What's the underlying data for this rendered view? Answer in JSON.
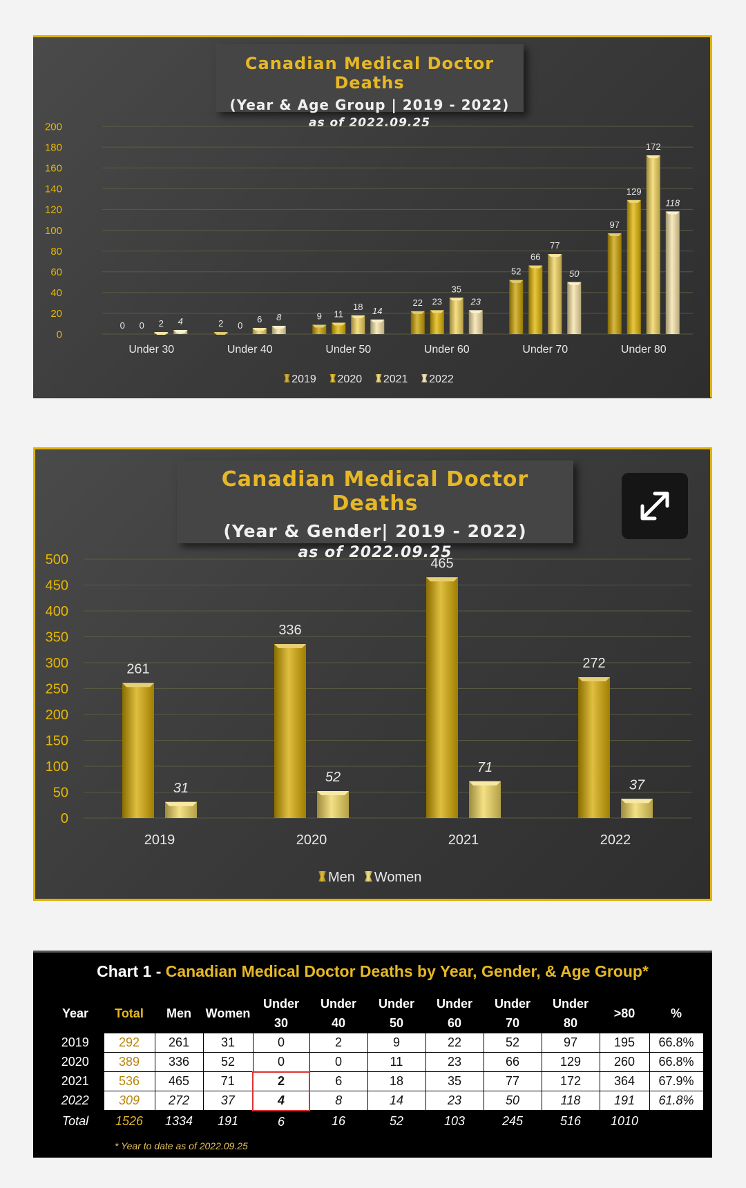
{
  "chart_data": [
    {
      "type": "bar",
      "title": "Canadian Medical Doctor Deaths",
      "subtitle": "(Year & Age Group | 2019 - 2022)",
      "date_note": "as of 2022.09.25",
      "categories": [
        "Under 30",
        "Under 40",
        "Under 50",
        "Under 60",
        "Under 70",
        "Under 80"
      ],
      "series": [
        {
          "name": "2019",
          "values": [
            0,
            2,
            9,
            22,
            52,
            97
          ],
          "value_labels": [
            "0",
            "2",
            "9",
            "22",
            "52",
            "97"
          ],
          "color": "#c9a000"
        },
        {
          "name": "2020",
          "values": [
            0,
            0,
            11,
            23,
            66,
            129
          ],
          "value_labels": [
            "0",
            "0",
            "11",
            "23",
            "66",
            "129"
          ],
          "color": "#e0b400"
        },
        {
          "name": "2021",
          "values": [
            2,
            6,
            18,
            35,
            77,
            172
          ],
          "value_labels": [
            "2",
            "6",
            "18",
            "35",
            "77",
            "172"
          ],
          "color": "#f2d35a"
        },
        {
          "name": "2022",
          "values": [
            4,
            8,
            14,
            23,
            50,
            118
          ],
          "value_labels": [
            "4",
            "8",
            "14",
            "23",
            "50",
            "118"
          ],
          "color": "#f5e3a6"
        }
      ],
      "yticks": [
        "0",
        "20",
        "40",
        "60",
        "80",
        "100",
        "120",
        "140",
        "160",
        "180",
        "200"
      ],
      "ylim": [
        0,
        200
      ],
      "grid": true,
      "legend": "bottom"
    },
    {
      "type": "bar",
      "title": "Canadian Medical Doctor Deaths",
      "subtitle": "(Year & Gender| 2019 - 2022)",
      "date_note": "as of 2022.09.25",
      "categories": [
        "2019",
        "2020",
        "2021",
        "2022"
      ],
      "series": [
        {
          "name": "Men",
          "values": [
            261,
            336,
            465,
            272
          ],
          "value_labels": [
            "261",
            "336",
            "465",
            "272"
          ],
          "color": "#d4a800"
        },
        {
          "name": "Women",
          "values": [
            31,
            52,
            71,
            37
          ],
          "value_labels": [
            "31",
            "52",
            "71",
            "37"
          ],
          "color": "#f0d55c"
        }
      ],
      "yticks": [
        "0",
        "50",
        "100",
        "150",
        "200",
        "250",
        "300",
        "350",
        "400",
        "450",
        "500"
      ],
      "ylim": [
        0,
        500
      ],
      "grid": true,
      "legend": "bottom"
    },
    {
      "type": "table",
      "title_prefix": "Chart 1 - ",
      "title": "Canadian Medical Doctor Deaths by Year, Gender, & Age Group*",
      "headers": [
        {
          "l1": "",
          "l2": "Year"
        },
        {
          "l1": "",
          "l2": "Total"
        },
        {
          "l1": "",
          "l2": "Men"
        },
        {
          "l1": "",
          "l2": "Women"
        },
        {
          "l1": "Under",
          "l2": "30"
        },
        {
          "l1": "Under",
          "l2": "40"
        },
        {
          "l1": "Under",
          "l2": "50"
        },
        {
          "l1": "Under",
          "l2": "60"
        },
        {
          "l1": "Under",
          "l2": "70"
        },
        {
          "l1": "Under",
          "l2": "80"
        },
        {
          "l1": "",
          "l2": ">80"
        },
        {
          "l1": "",
          "l2": "%"
        }
      ],
      "rows": [
        [
          "2019",
          "292",
          "261",
          "31",
          "0",
          "2",
          "9",
          "22",
          "52",
          "97",
          "195",
          "66.8%"
        ],
        [
          "2020",
          "389",
          "336",
          "52",
          "0",
          "0",
          "11",
          "23",
          "66",
          "129",
          "260",
          "66.8%"
        ],
        [
          "2021",
          "536",
          "465",
          "71",
          "2",
          "6",
          "18",
          "35",
          "77",
          "172",
          "364",
          "67.9%"
        ],
        [
          "2022",
          "309",
          "272",
          "37",
          "4",
          "8",
          "14",
          "23",
          "50",
          "118",
          "191",
          "61.8%"
        ]
      ],
      "total_row": [
        "Total",
        "1526",
        "1334",
        "191",
        "6",
        "16",
        "52",
        "103",
        "245",
        "516",
        "1010",
        ""
      ],
      "footnote": "* Year to date as of 2022.09.25"
    }
  ],
  "ui": {
    "expand_icon": "expand-arrows-icon",
    "accent": "#e0b300"
  }
}
